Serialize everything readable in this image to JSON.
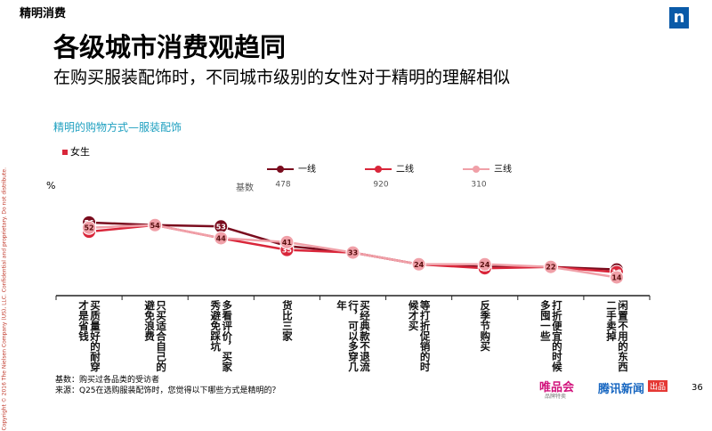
{
  "header": {
    "tag": "精明消费",
    "logo": "n",
    "page": "36"
  },
  "title": "各级城市消费观趋同",
  "subtitle": "在购买服装配饰时，不同城市级别的女性对于精明的理解相似",
  "section": "精明的购物方式—服装配饰",
  "filter": "女生",
  "copyright": "Copyright © 2016 The Nielsen Company (US), LLC. Confidential and proprietary. Do not distribute.",
  "footer": {
    "base": "基数：购买过各品类的受访者",
    "source": "来源：Q25在选购服装配饰时，您觉得以下哪些方式是精明的？",
    "brand1": "唯品会",
    "brand1_sub": "品牌特卖",
    "brand2": "腾讯新闻",
    "brand2_tag": "出品"
  },
  "chart_data": {
    "type": "line",
    "unit": "%",
    "base_label": "基数",
    "categories": [
      "买质量好的耐穿才是省钱",
      "只买适合自己的避免浪费",
      "多看评价，买家秀避免踩坑",
      "货比三家",
      "买经典款不退流行，可以多穿几年",
      "等打折促销的时候才买",
      "反季节购买",
      "打折便宜的时候多囤一些",
      "闲置不用的东西二手卖掉"
    ],
    "series": [
      {
        "name": "一线",
        "color": "#7a0c1e",
        "base": 478,
        "values": [
          56,
          54,
          53,
          38,
          33,
          24,
          22,
          22,
          20
        ]
      },
      {
        "name": "二线",
        "color": "#d9263a",
        "base": 920,
        "values": [
          49,
          54,
          44,
          35,
          33,
          24,
          21,
          22,
          18
        ]
      },
      {
        "name": "三线",
        "color": "#f0a0a8",
        "base": 310,
        "values": [
          52,
          54,
          44,
          41,
          33,
          24,
          24,
          22,
          14
        ]
      }
    ],
    "ylim": [
      0,
      60
    ]
  }
}
